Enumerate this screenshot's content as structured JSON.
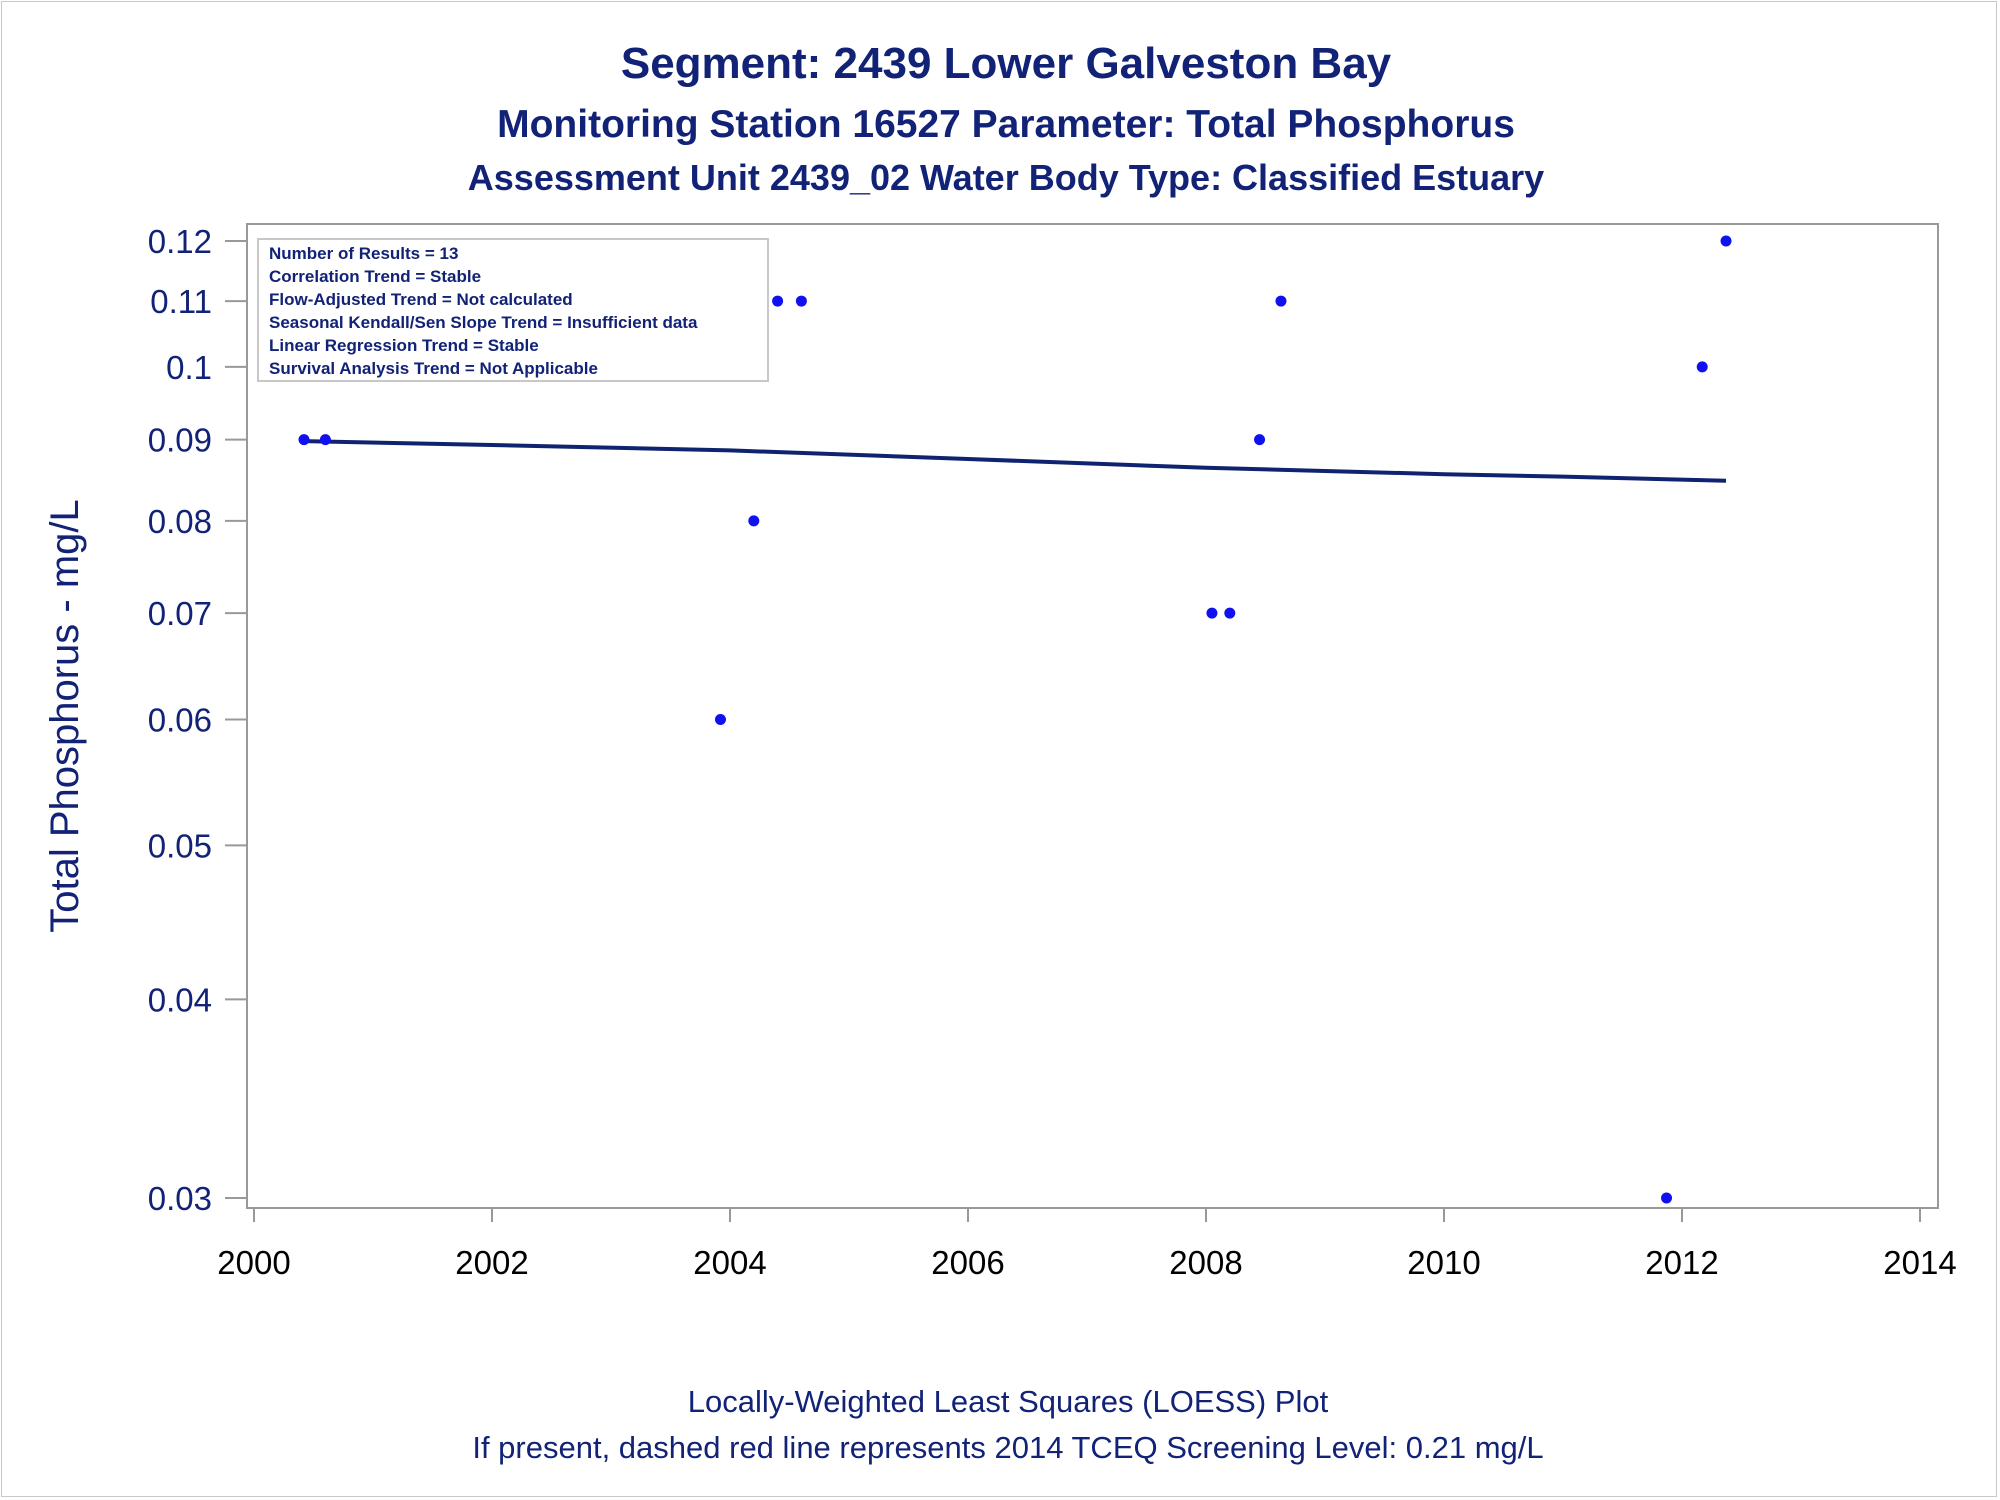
{
  "titles": {
    "line1": "Segment: 2439  Lower Galveston Bay",
    "line2": "Monitoring Station 16527 Parameter: Total Phosphorus",
    "line3": "Assessment Unit 2439_02   Water Body Type: Classified Estuary"
  },
  "footnotes": {
    "line1": "Locally-Weighted Least Squares (LOESS) Plot",
    "line2": "If present, dashed red line represents 2014 TCEQ Screening Level: 0.21 mg/L"
  },
  "info_box": {
    "lines": [
      "Number of Results = 13",
      "Correlation Trend = Stable",
      "Flow-Adjusted Trend = Not calculated",
      "Seasonal Kendall/Sen Slope Trend = Insufficient data",
      "Linear Regression Trend = Stable",
      "Survival Analysis Trend = Not Applicable"
    ]
  },
  "colors": {
    "text": "#112277",
    "points": "#1010f0",
    "loess_line": "#0f2370",
    "axis": "#999999"
  },
  "chart_data": {
    "type": "scatter",
    "ylabel": "Total Phosphorus - mg/L",
    "xlabel": "",
    "y_scale": "log",
    "xlim": [
      2000,
      2014
    ],
    "ylim": [
      0.03,
      0.12
    ],
    "x_ticks": [
      "2000",
      "2002",
      "2004",
      "2006",
      "2008",
      "2010",
      "2012",
      "2014"
    ],
    "y_ticks": [
      "0.03",
      "0.04",
      "0.05",
      "0.06",
      "0.07",
      "0.08",
      "0.09",
      "0.1",
      "0.11",
      "0.12"
    ],
    "x_tick_values": [
      2000,
      2002,
      2004,
      2006,
      2008,
      2010,
      2012,
      2014
    ],
    "y_tick_values": [
      0.03,
      0.04,
      0.05,
      0.06,
      0.07,
      0.08,
      0.09,
      0.1,
      0.11,
      0.12
    ],
    "points": [
      {
        "x": 2000.42,
        "y": 0.09
      },
      {
        "x": 2000.6,
        "y": 0.09
      },
      {
        "x": 2003.92,
        "y": 0.06
      },
      {
        "x": 2004.2,
        "y": 0.08
      },
      {
        "x": 2004.4,
        "y": 0.11
      },
      {
        "x": 2004.6,
        "y": 0.11
      },
      {
        "x": 2008.05,
        "y": 0.07
      },
      {
        "x": 2008.2,
        "y": 0.07
      },
      {
        "x": 2008.45,
        "y": 0.09
      },
      {
        "x": 2008.63,
        "y": 0.11
      },
      {
        "x": 2011.87,
        "y": 0.03
      },
      {
        "x": 2012.17,
        "y": 0.1
      },
      {
        "x": 2012.37,
        "y": 0.12
      }
    ],
    "loess": [
      {
        "x": 2000.42,
        "y": 0.0898
      },
      {
        "x": 2002.0,
        "y": 0.0893
      },
      {
        "x": 2004.0,
        "y": 0.0886
      },
      {
        "x": 2006.0,
        "y": 0.0875
      },
      {
        "x": 2008.0,
        "y": 0.0864
      },
      {
        "x": 2010.0,
        "y": 0.0856
      },
      {
        "x": 2011.0,
        "y": 0.0853
      },
      {
        "x": 2012.37,
        "y": 0.0848
      }
    ]
  }
}
